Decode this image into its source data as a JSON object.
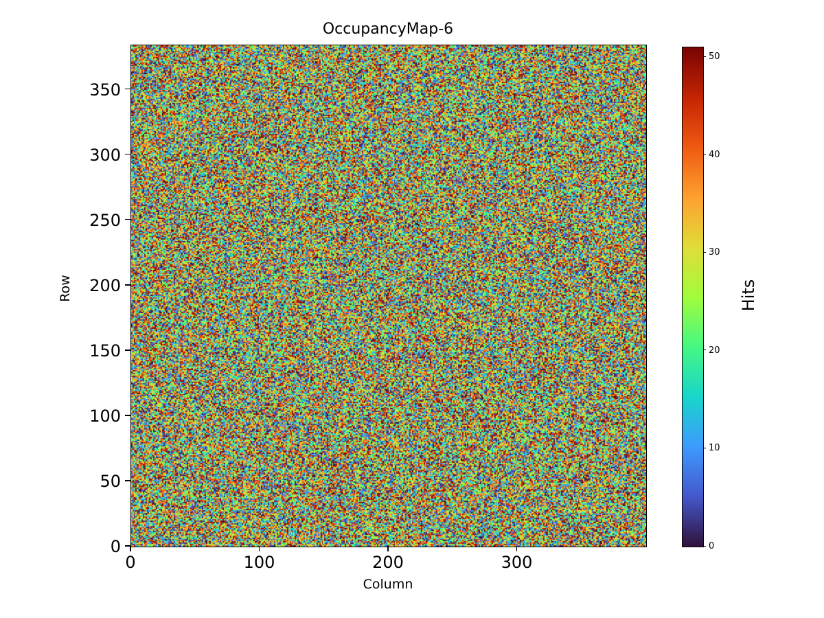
{
  "chart_data": {
    "type": "heatmap",
    "title": "OccupancyMap-6",
    "xlabel": "Column",
    "ylabel": "Row",
    "cols": 400,
    "rows": 384,
    "xlim": [
      0,
      400
    ],
    "ylim": [
      0,
      384
    ],
    "x_ticks": [
      0,
      100,
      200,
      300
    ],
    "y_ticks": [
      0,
      50,
      100,
      150,
      200,
      250,
      300,
      350
    ],
    "vmin": 0,
    "vmax": 51,
    "colorbar": {
      "label": "Hits",
      "ticks": [
        0,
        10,
        20,
        30,
        40,
        50
      ],
      "position": "right"
    },
    "colormap": "turbo",
    "colormap_stops": [
      [
        0.0,
        "#30123b"
      ],
      [
        0.1,
        "#4458cb"
      ],
      [
        0.2,
        "#3e9bfe"
      ],
      [
        0.3,
        "#18d6cb"
      ],
      [
        0.4,
        "#46f884"
      ],
      [
        0.5,
        "#a2fc3c"
      ],
      [
        0.6,
        "#e1dd37"
      ],
      [
        0.7,
        "#fea130"
      ],
      [
        0.8,
        "#ef5a11"
      ],
      [
        0.9,
        "#c42503"
      ],
      [
        1.0,
        "#7a0403"
      ]
    ],
    "data_description": "Per-pixel hit counts; uniform random integer noise spanning the full 0-51 range across a 400x384 pixel matrix, origin at lower-left",
    "seed": 20236,
    "grid": false,
    "legend": false
  }
}
